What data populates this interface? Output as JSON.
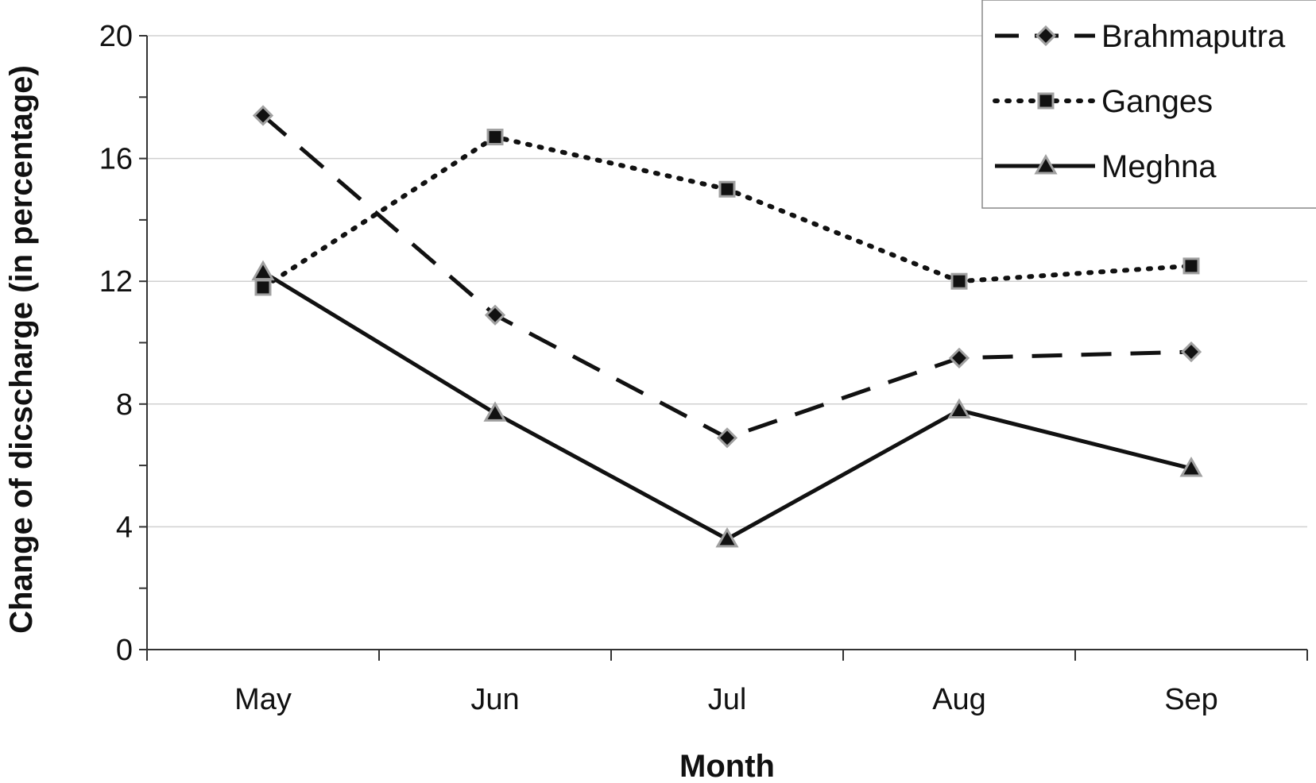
{
  "chart_data": {
    "type": "line",
    "categories": [
      "May",
      "Jun",
      "Jul",
      "Aug",
      "Sep"
    ],
    "series": [
      {
        "name": "Brahmaputra",
        "values": [
          17.4,
          10.9,
          6.9,
          9.5,
          9.7
        ],
        "line_style": "dashed",
        "marker": "diamond"
      },
      {
        "name": "Ganges",
        "values": [
          11.8,
          16.7,
          15.0,
          12.0,
          12.5
        ],
        "line_style": "dotted",
        "marker": "square"
      },
      {
        "name": "Meghna",
        "values": [
          12.3,
          7.7,
          3.6,
          7.8,
          5.9
        ],
        "line_style": "solid",
        "marker": "triangle"
      }
    ],
    "xlabel": "Month",
    "ylabel": "Change of dicscharge (in percentage)",
    "ylim": [
      0,
      20
    ],
    "yticks": [
      "0",
      "4",
      "8",
      "12",
      "16",
      "20"
    ],
    "grid": "horizontal",
    "legend_position": "top-right",
    "colors": {
      "line": "#111111",
      "marker_outline": "#a0a0a0",
      "grid": "#d0d0d0"
    }
  }
}
